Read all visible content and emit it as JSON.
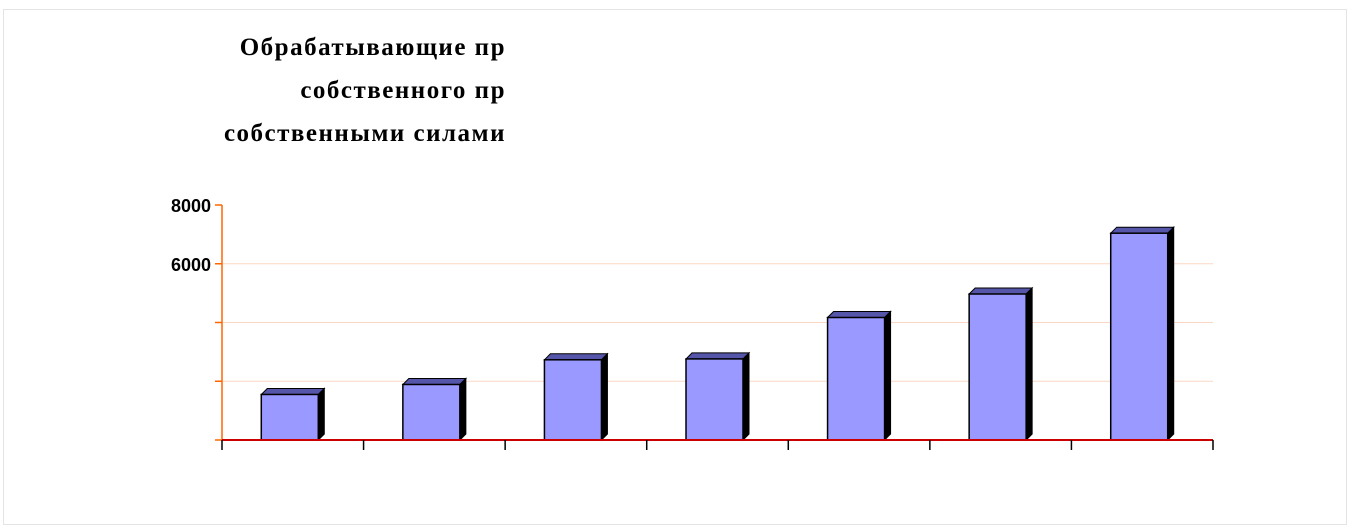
{
  "chart_data": {
    "type": "bar",
    "title_lines": [
      "Обрабатывающие пр",
      "собственного пр",
      "собственными силами"
    ],
    "categories": [
      "",
      "",
      "",
      "",
      "",
      "",
      ""
    ],
    "values": [
      1550,
      1890,
      2730,
      2760,
      4170,
      4970,
      7040
    ],
    "ylim": [
      0,
      8000
    ],
    "yticks": [
      0,
      2000,
      4000,
      6000,
      8000
    ],
    "ytick_labels": [
      "",
      "",
      "",
      "6000",
      "8000"
    ],
    "grid": true,
    "legend": "none",
    "bar_color": "#9999ff",
    "axis_color": "#ff6600",
    "baseline_color": "#cc0000"
  }
}
